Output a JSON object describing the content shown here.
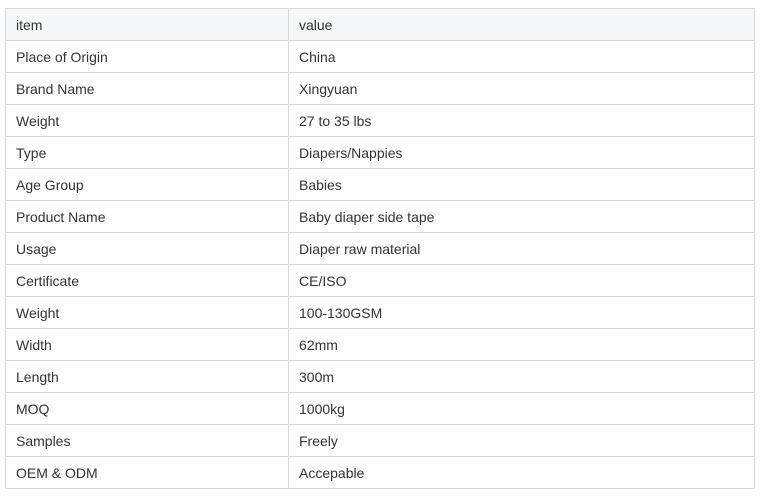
{
  "table": {
    "headers": [
      "item",
      "value"
    ],
    "rows": [
      [
        "Place of Origin",
        "China"
      ],
      [
        "Brand Name",
        "Xingyuan"
      ],
      [
        "Weight",
        "27 to 35 lbs"
      ],
      [
        "Type",
        "Diapers/Nappies"
      ],
      [
        "Age Group",
        "Babies"
      ],
      [
        "Product Name",
        "Baby diaper side tape"
      ],
      [
        "Usage",
        "Diaper raw material"
      ],
      [
        "Certificate",
        "CE/ISO"
      ],
      [
        "Weight",
        "100-130GSM"
      ],
      [
        "Width",
        "62mm"
      ],
      [
        "Length",
        "300m"
      ],
      [
        "MOQ",
        "1000kg"
      ],
      [
        "Samples",
        "Freely"
      ],
      [
        "OEM & ODM",
        "Accepable"
      ]
    ]
  }
}
